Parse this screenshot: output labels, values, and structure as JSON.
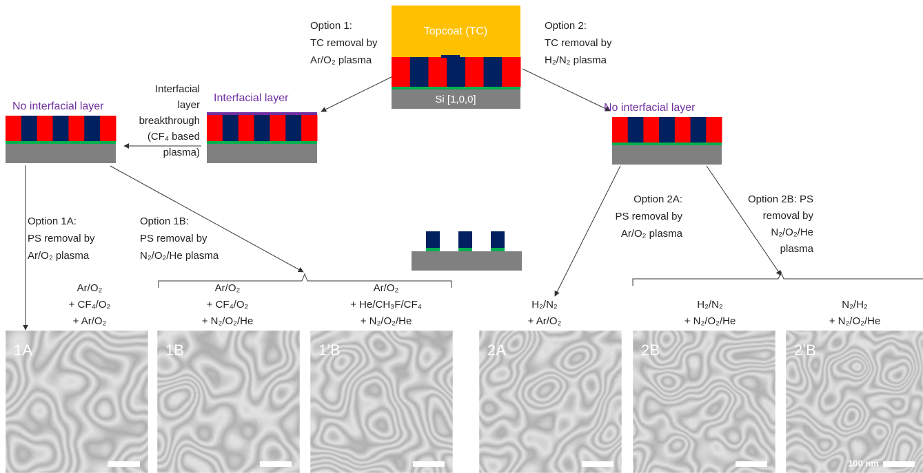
{
  "top_stack": {
    "topcoat": "Topcoat (TC)",
    "substrate": "Si [1,0,0]"
  },
  "option_1": [
    "Option 1:",
    "TC removal by",
    "Ar/O₂ plasma"
  ],
  "option_2": [
    "Option 2:",
    "TC removal by",
    "H₂/N₂ plasma"
  ],
  "interfacial_stack": {
    "label": "Interfacial layer"
  },
  "breakthrough": [
    "Interfacial",
    "layer",
    "breakthrough",
    "(CF₄ based",
    "plasma)"
  ],
  "left_stack": {
    "label": "No interfacial layer"
  },
  "right_stack": {
    "label": "No interfacial layer"
  },
  "option_1a": [
    "Option 1A:",
    "PS removal by",
    "Ar/O₂ plasma"
  ],
  "option_1b": [
    "Option 1B:",
    "PS removal by",
    "N₂/O₂/He plasma"
  ],
  "option_2a": [
    "Option 2A:",
    "PS removal by",
    "Ar/O₂ plasma"
  ],
  "option_2b": [
    "Option 2B: PS",
    "removal by",
    "N₂/O₂/He",
    "plasma"
  ],
  "panels": [
    {
      "label": "1A",
      "recipe": [
        "Ar/O₂",
        "+ CF₄/O₂",
        "+ Ar/O₂"
      ]
    },
    {
      "label": "1B",
      "recipe": [
        "Ar/O₂",
        "+ CF₄/O₂",
        "+ N₂/O₂/He"
      ]
    },
    {
      "label": "1’B",
      "recipe": [
        "Ar/O₂",
        "+ He/CH₃F/CF₄",
        "+ N₂/O₂/He"
      ]
    },
    {
      "label": "2A",
      "recipe": [
        "H₂/N₂",
        "+ Ar/O₂"
      ]
    },
    {
      "label": "2B",
      "recipe": [
        "H₂/N₂",
        "+ N₂/O₂/He"
      ]
    },
    {
      "label": "2’B",
      "recipe": [
        "N₂/H₂",
        "+ N₂/O₂/He"
      ]
    }
  ],
  "scale_bar": "100 nm"
}
